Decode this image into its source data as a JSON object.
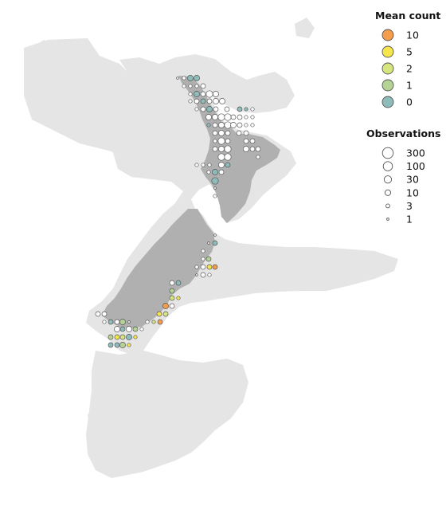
{
  "legend": {
    "mean_count": {
      "title": "Mean count",
      "items": [
        {
          "label": "10",
          "color": "#f59d4c"
        },
        {
          "label": "5",
          "color": "#f6e54d"
        },
        {
          "label": "2",
          "color": "#d7e57f"
        },
        {
          "label": "1",
          "color": "#b5d395"
        },
        {
          "label": "0",
          "color": "#8dbcbb"
        }
      ]
    },
    "observations": {
      "title": "Observations",
      "items": [
        {
          "label": "300",
          "value": 300
        },
        {
          "label": "100",
          "value": 100
        },
        {
          "label": "30",
          "value": 30
        },
        {
          "label": "10",
          "value": 10
        },
        {
          "label": "3",
          "value": 3
        },
        {
          "label": "1",
          "value": 1
        }
      ]
    }
  },
  "colors": {
    "land_background": "#e5e5e5",
    "land_highlight": "#b0b0b0",
    "water": "#ffffff",
    "marker_stroke": "#555555",
    "marker_fill_none": "#ffffff"
  }
}
